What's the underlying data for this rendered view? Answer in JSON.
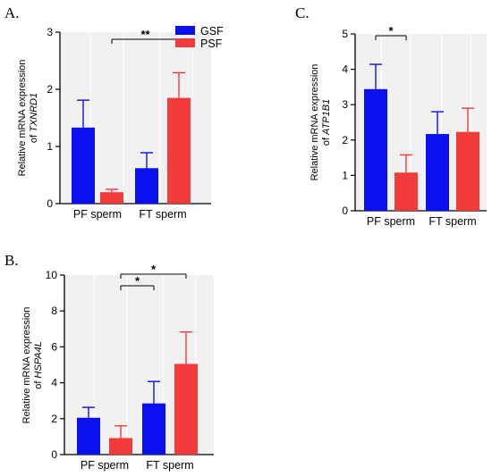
{
  "chart_data": [
    {
      "panel": "A.",
      "type": "bar",
      "categories": [
        "PF sperm",
        "FT sperm"
      ],
      "series": [
        {
          "name": "GSF",
          "color": "#0a10f0",
          "values": [
            1.33,
            0.62
          ],
          "errors": [
            0.48,
            0.27
          ]
        },
        {
          "name": "PSF",
          "color": "#f23b3b",
          "values": [
            0.2,
            1.85
          ],
          "errors": [
            0.05,
            0.44
          ]
        }
      ],
      "ylabel_line1": "Relative mRNA expression",
      "ylabel_prefix": "of ",
      "ylabel_gene": "TXNRD1",
      "ylim": [
        0,
        3
      ],
      "yticks": [
        "0",
        "1",
        "2",
        "3"
      ],
      "significance": [
        {
          "label": "**",
          "from": [
            0,
            1
          ],
          "to": [
            1,
            1
          ]
        }
      ],
      "legend": "top-right"
    },
    {
      "panel": "C.",
      "type": "bar",
      "categories": [
        "PF sperm",
        "FT sperm"
      ],
      "series": [
        {
          "name": "GSF",
          "color": "#0a10f0",
          "values": [
            3.44,
            2.17
          ],
          "errors": [
            0.7,
            0.63
          ]
        },
        {
          "name": "PSF",
          "color": "#f23b3b",
          "values": [
            1.08,
            2.23
          ],
          "errors": [
            0.5,
            0.67
          ]
        }
      ],
      "ylabel_line1": "Relative mRNA expression",
      "ylabel_prefix": "of ",
      "ylabel_gene": "ATP1B1",
      "ylim": [
        0,
        5
      ],
      "yticks": [
        "0",
        "1",
        "2",
        "3",
        "4",
        "5"
      ],
      "significance": [
        {
          "label": "*",
          "from": [
            0,
            0
          ],
          "to": [
            0,
            1
          ]
        }
      ]
    },
    {
      "panel": "B.",
      "type": "bar",
      "categories": [
        "PF sperm",
        "FT sperm"
      ],
      "series": [
        {
          "name": "GSF",
          "color": "#0a10f0",
          "values": [
            2.05,
            2.85
          ],
          "errors": [
            0.58,
            1.22
          ]
        },
        {
          "name": "PSF",
          "color": "#f23b3b",
          "values": [
            0.92,
            5.05
          ],
          "errors": [
            0.68,
            1.78
          ]
        }
      ],
      "ylabel_line1": "Relative mRNA expression",
      "ylabel_prefix": "of ",
      "ylabel_gene": "HSPA4L",
      "ylim": [
        0,
        10
      ],
      "yticks": [
        "0",
        "2",
        "4",
        "6",
        "8",
        "10"
      ],
      "significance": [
        {
          "label": "*",
          "from": [
            0,
            1
          ],
          "to": [
            1,
            0
          ]
        },
        {
          "label": "*",
          "from": [
            0,
            1
          ],
          "to": [
            1,
            1
          ]
        }
      ]
    }
  ]
}
